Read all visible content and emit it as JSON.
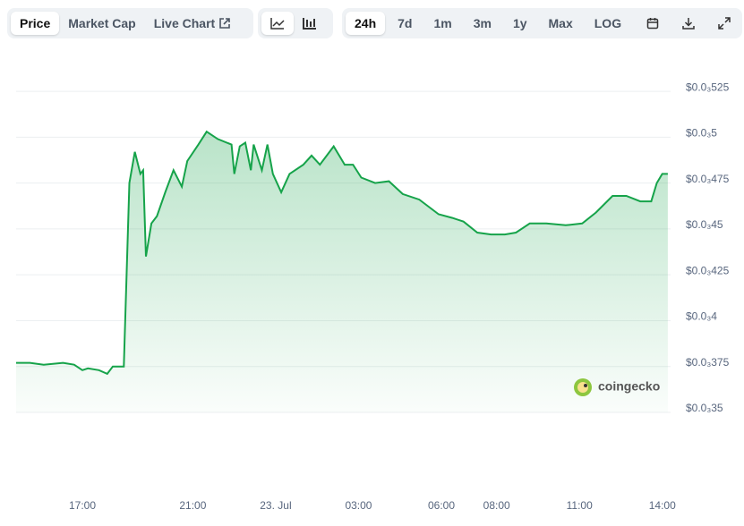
{
  "toolbar": {
    "tabs": [
      "Price",
      "Market Cap",
      "Live Chart"
    ],
    "ranges": [
      "24h",
      "7d",
      "1m",
      "3m",
      "1y",
      "Max",
      "LOG"
    ]
  },
  "watermark": "coingecko",
  "chart_data": {
    "type": "line",
    "color": "#16a34a",
    "x": [
      -9.4,
      -8.9,
      -8.4,
      -7.7,
      -7.3,
      -7.0,
      -6.8,
      -6.4,
      -6.1,
      -5.9,
      -5.5,
      -5.3,
      -5.1,
      -4.9,
      -4.8,
      -4.7,
      -4.5,
      -4.3,
      -4.0,
      -3.7,
      -3.4,
      -3.2,
      -2.8,
      -2.5,
      -2.1,
      -1.6,
      -1.5,
      -1.3,
      -1.1,
      -0.9,
      -0.8,
      -0.5,
      -0.3,
      -0.1,
      0.2,
      0.5,
      1.0,
      1.3,
      1.6,
      2.1,
      2.5,
      2.8,
      3.1,
      3.6,
      4.1,
      4.6,
      5.2,
      5.9,
      6.4,
      6.8,
      7.3,
      7.8,
      8.3,
      8.7,
      9.2,
      9.8,
      10.5,
      11.1,
      11.6,
      12.2,
      12.7,
      13.2,
      13.6,
      13.8,
      14.0,
      14.2
    ],
    "values": [
      0.000377,
      0.000377,
      0.000376,
      0.000377,
      0.000376,
      0.000373,
      0.000374,
      0.000373,
      0.000371,
      0.000375,
      0.000375,
      0.000475,
      0.000492,
      0.00048,
      0.000482,
      0.000435,
      0.000453,
      0.000457,
      0.00047,
      0.000482,
      0.000473,
      0.000487,
      0.000496,
      0.000503,
      0.000499,
      0.000496,
      0.00048,
      0.000495,
      0.000497,
      0.000482,
      0.000496,
      0.000482,
      0.000496,
      0.00048,
      0.00047,
      0.00048,
      0.000485,
      0.00049,
      0.000485,
      0.000495,
      0.000485,
      0.000485,
      0.000478,
      0.000475,
      0.000476,
      0.000469,
      0.000466,
      0.000458,
      0.000456,
      0.000454,
      0.000448,
      0.000447,
      0.000447,
      0.000448,
      0.000453,
      0.000453,
      0.000452,
      0.000453,
      0.000459,
      0.000468,
      0.000468,
      0.000465,
      0.000465,
      0.000475,
      0.00048,
      0.00048
    ],
    "xlim": [
      -9.4,
      14.3
    ],
    "xticks": [
      {
        "value": -7,
        "label": "17:00"
      },
      {
        "value": -3,
        "label": "21:00"
      },
      {
        "value": 0,
        "label": "23. Jul"
      },
      {
        "value": 3,
        "label": "03:00"
      },
      {
        "value": 6,
        "label": "06:00"
      },
      {
        "value": 8,
        "label": "08:00"
      },
      {
        "value": 11,
        "label": "11:00"
      },
      {
        "value": 14,
        "label": "14:00"
      }
    ],
    "ylim": [
      0.00035,
      0.0005465
    ],
    "yticks": [
      {
        "value": 0.000525,
        "label": "$0.0₃525"
      },
      {
        "value": 0.0005,
        "label": "$0.0₃5"
      },
      {
        "value": 0.000475,
        "label": "$0.0₃475"
      },
      {
        "value": 0.00045,
        "label": "$0.0₃45"
      },
      {
        "value": 0.000425,
        "label": "$0.0₃425"
      },
      {
        "value": 0.0004,
        "label": "$0.0₃4"
      },
      {
        "value": 0.000375,
        "label": "$0.0₃375"
      },
      {
        "value": 0.00035,
        "label": "$0.0₃35"
      }
    ],
    "grid": true
  }
}
